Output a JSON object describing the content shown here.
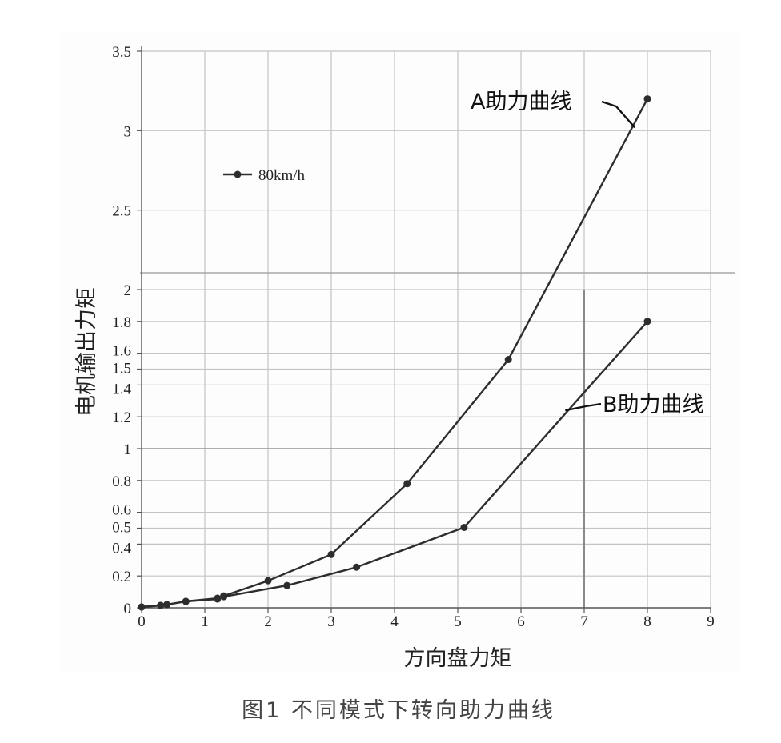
{
  "chart_data": {
    "type": "line",
    "xlabel": "方向盘力矩",
    "ylabel": "电机输出力矩",
    "xlim": [
      0,
      9
    ],
    "x_ticks": [
      0,
      1,
      2,
      3,
      4,
      5,
      6,
      7,
      8,
      9
    ],
    "ylim": [
      0,
      3.5
    ],
    "y_ticks_lower": [
      0,
      0.2,
      0.4,
      0.5,
      0.6,
      0.8,
      1,
      1.2,
      1.4,
      1.5,
      1.6,
      1.8,
      2
    ],
    "y_ticks_upper": [
      2.5,
      3,
      3.5
    ],
    "grid": true,
    "legend": {
      "label": "80km/h",
      "position": "upper-left"
    },
    "series": [
      {
        "name": "A助力曲线",
        "x": [
          0,
          0.3,
          0.4,
          0.7,
          1.2,
          1.3,
          2.0,
          3.0,
          4.2,
          5.8,
          8.0
        ],
        "y": [
          0.005,
          0.015,
          0.02,
          0.04,
          0.06,
          0.075,
          0.17,
          0.335,
          0.78,
          1.56,
          3.2
        ]
      },
      {
        "name": "B助力曲线",
        "x": [
          0,
          0.3,
          0.4,
          0.7,
          1.2,
          1.3,
          2.3,
          3.4,
          5.1,
          8.0
        ],
        "y": [
          0.005,
          0.015,
          0.02,
          0.04,
          0.055,
          0.07,
          0.14,
          0.255,
          0.505,
          1.8
        ]
      }
    ],
    "annotations": [
      {
        "text": "A助力曲线",
        "series": "A助力曲线",
        "target": [
          7.8,
          3.02
        ]
      },
      {
        "text": "B助力曲线",
        "series": "B助力曲线",
        "target": [
          6.7,
          1.24
        ]
      }
    ]
  },
  "caption": "图1   不同模式下转向助力曲线"
}
